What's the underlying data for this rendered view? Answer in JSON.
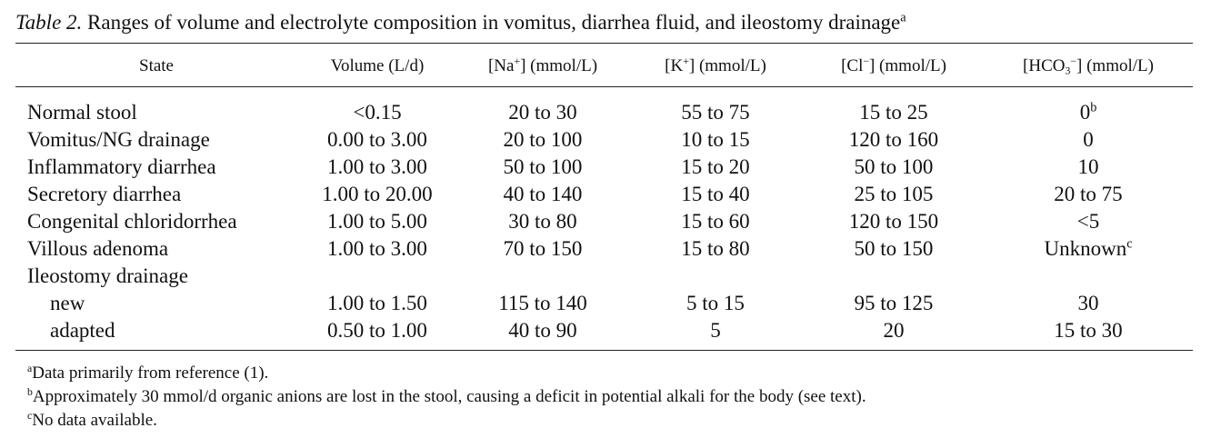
{
  "title": [
    {
      "text": "Table 2.",
      "style": "italic"
    },
    {
      "text": " Ranges of volume and electrolyte composition in vomitus, diarrhea fluid, and ileostomy drainage"
    },
    {
      "text": "a",
      "style": "sup"
    }
  ],
  "table": {
    "header": [
      [
        {
          "text": "State"
        }
      ],
      [
        {
          "text": "Volume (L/d)"
        }
      ],
      [
        {
          "text": "[Na"
        },
        {
          "text": "+",
          "style": "sup"
        },
        {
          "text": "] (mmol/L)"
        }
      ],
      [
        {
          "text": "[K"
        },
        {
          "text": "+",
          "style": "sup"
        },
        {
          "text": "] (mmol/L)"
        }
      ],
      [
        {
          "text": "[Cl"
        },
        {
          "text": "−",
          "style": "sup"
        },
        {
          "text": "] (mmol/L)"
        }
      ],
      [
        {
          "text": "[HCO"
        },
        {
          "text": "3",
          "style": "sub"
        },
        {
          "text": "−",
          "style": "sup"
        },
        {
          "text": "] (mmol/L)"
        }
      ]
    ],
    "rows": [
      {
        "cells": [
          {
            "text": "Normal stool"
          },
          {
            "text": "<0.15"
          },
          {
            "text": "20 to 30"
          },
          {
            "text": "55 to 75"
          },
          {
            "text": "15 to 25"
          },
          {
            "text": "0",
            "note": "b"
          }
        ]
      },
      {
        "cells": [
          {
            "text": "Vomitus/NG drainage"
          },
          {
            "text": "0.00 to 3.00"
          },
          {
            "text": "20 to 100"
          },
          {
            "text": "10 to 15"
          },
          {
            "text": "120 to 160"
          },
          {
            "text": "0"
          }
        ]
      },
      {
        "cells": [
          {
            "text": "Inflammatory diarrhea"
          },
          {
            "text": "1.00 to 3.00"
          },
          {
            "text": "50 to 100"
          },
          {
            "text": "15 to 20"
          },
          {
            "text": "50 to 100"
          },
          {
            "text": "10"
          }
        ]
      },
      {
        "cells": [
          {
            "text": "Secretory diarrhea"
          },
          {
            "text": "1.00 to 20.00"
          },
          {
            "text": "40 to 140"
          },
          {
            "text": "15 to 40"
          },
          {
            "text": "25 to 105"
          },
          {
            "text": "20 to 75"
          }
        ]
      },
      {
        "cells": [
          {
            "text": "Congenital chloridorrhea"
          },
          {
            "text": "1.00 to 5.00"
          },
          {
            "text": "30 to 80"
          },
          {
            "text": "15 to 60"
          },
          {
            "text": "120 to 150"
          },
          {
            "text": "<5"
          }
        ]
      },
      {
        "cells": [
          {
            "text": "Villous adenoma"
          },
          {
            "text": "1.00 to 3.00"
          },
          {
            "text": "70 to 150"
          },
          {
            "text": "15 to 80"
          },
          {
            "text": "50 to 150"
          },
          {
            "text": "Unknown",
            "note": "c"
          }
        ]
      },
      {
        "cells": [
          {
            "text": "Ileostomy drainage"
          }
        ]
      },
      {
        "indent": true,
        "cells": [
          {
            "text": "new"
          },
          {
            "text": "1.00 to 1.50"
          },
          {
            "text": "115 to 140"
          },
          {
            "text": "5 to 15"
          },
          {
            "text": "95 to 125"
          },
          {
            "text": "30"
          }
        ]
      },
      {
        "indent": true,
        "cells": [
          {
            "text": "adapted"
          },
          {
            "text": "0.50 to 1.00"
          },
          {
            "text": "40 to 90"
          },
          {
            "text": "5"
          },
          {
            "text": "20"
          },
          {
            "text": "15 to 30"
          }
        ]
      }
    ]
  },
  "footnotes": [
    {
      "mark": "a",
      "text": "Data primarily from reference (1)."
    },
    {
      "mark": "b",
      "text": "Approximately 30 mmol/d organic anions are lost in the stool, causing a deficit in potential alkali for the body (see text)."
    },
    {
      "mark": "c",
      "text": "No data available."
    }
  ]
}
